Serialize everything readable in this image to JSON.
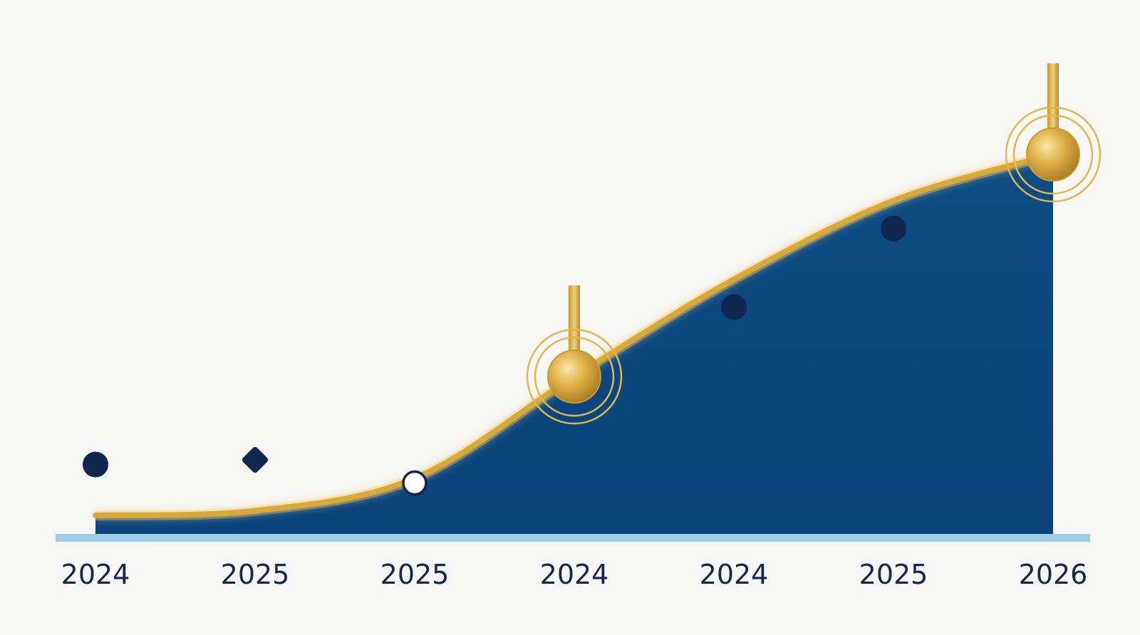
{
  "chart_data": {
    "type": "area",
    "x_tick_labels": [
      "2024",
      "2025",
      "2025",
      "2024",
      "2024",
      "2025",
      "2026"
    ],
    "curve": {
      "x": [
        0,
        1,
        2,
        3,
        4,
        5,
        6
      ],
      "y": [
        4,
        5,
        12,
        34,
        55,
        72,
        82
      ]
    },
    "markers": [
      {
        "x": 0,
        "y": 15,
        "shape": "filled-circle"
      },
      {
        "x": 1,
        "y": 16,
        "shape": "filled-diamond"
      },
      {
        "x": 2,
        "y": 11,
        "shape": "hollow-circle"
      },
      {
        "x": 3,
        "y": 34,
        "shape": "gold-milestone"
      },
      {
        "x": 4,
        "y": 49,
        "shape": "filled-circle"
      },
      {
        "x": 5,
        "y": 66,
        "shape": "filled-circle"
      },
      {
        "x": 6,
        "y": 82,
        "shape": "gold-milestone"
      }
    ],
    "ylim": [
      0,
      100
    ],
    "grid": false,
    "colors": {
      "area_fill": "#0c4a80",
      "line": "#d9a93a",
      "marker": "#0e2650",
      "baseline": "#9ccbe6",
      "gold": "#e2b64a"
    }
  }
}
